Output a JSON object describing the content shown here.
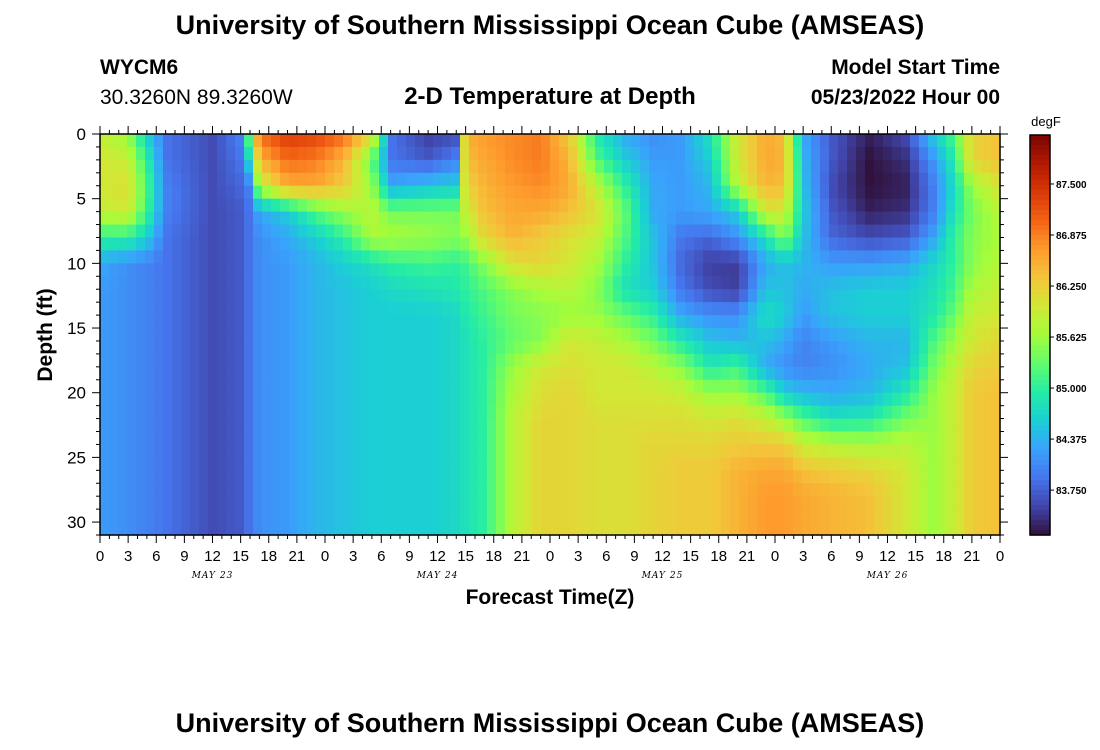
{
  "header": {
    "title": "University of Southern Mississippi Ocean Cube (AMSEAS)",
    "station": "WYCM6",
    "coords": "30.3260N  89.3260W",
    "subtitle": "2-D Temperature at Depth",
    "model_start_label": "Model Start Time",
    "model_start_value": "05/23/2022 Hour 00"
  },
  "footer": {
    "title": "University of Southern Mississippi Ocean Cube (AMSEAS)"
  },
  "colors": {
    "scale": [
      "#30123b",
      "#4145ab",
      "#4675ed",
      "#39a2fc",
      "#1bcfd4",
      "#24eca6",
      "#61fc6c",
      "#a4fc3b",
      "#d1e834",
      "#f3c63a",
      "#fe9b2d",
      "#f36315",
      "#d93806",
      "#b11901",
      "#7a0402"
    ]
  },
  "chart_data": {
    "type": "heatmap",
    "title": "2-D Temperature at Depth",
    "xlabel": "Forecast Time(Z)",
    "ylabel": "Depth (ft)",
    "x_range": [
      0,
      96
    ],
    "x_unit": "hours since 05/23/2022 00Z",
    "x_tick_labels": [
      "0",
      "3",
      "6",
      "9",
      "12",
      "15",
      "18",
      "21",
      "0",
      "3",
      "6",
      "9",
      "12",
      "15",
      "18",
      "21",
      "0",
      "3",
      "6",
      "9",
      "12",
      "15",
      "18",
      "21",
      "0",
      "3",
      "6",
      "9",
      "12",
      "15",
      "18",
      "21",
      "0"
    ],
    "date_labels": [
      {
        "text": "MAY 23",
        "hour": 12
      },
      {
        "text": "MAY 24",
        "hour": 36
      },
      {
        "text": "MAY 25",
        "hour": 60
      },
      {
        "text": "MAY 26",
        "hour": 84
      }
    ],
    "y_range": [
      0,
      31
    ],
    "y_ticks": [
      0,
      5,
      10,
      15,
      20,
      25,
      30
    ],
    "colorbar": {
      "unit": "degF",
      "min": 83.2,
      "max": 88.1,
      "ticks": [
        "87.500",
        "86.875",
        "86.250",
        "85.625",
        "85.000",
        "84.375",
        "83.750"
      ],
      "tick_values": [
        87.5,
        86.875,
        86.25,
        85.625,
        85.0,
        84.375,
        83.75
      ]
    },
    "profile_depths": [
      0,
      2,
      4,
      6,
      8,
      10,
      12,
      14,
      16,
      18,
      20,
      22,
      24,
      26,
      28,
      31
    ],
    "profiles": [
      {
        "hour": 0,
        "temps": [
          85.9,
          86.0,
          86.0,
          85.9,
          85.0,
          84.3,
          84.2,
          84.2,
          84.2,
          84.2,
          84.2,
          84.2,
          84.2,
          84.2,
          84.2,
          84.2
        ]
      },
      {
        "hour": 3,
        "temps": [
          85.6,
          85.9,
          86.1,
          86.0,
          85.0,
          84.1,
          84.1,
          84.1,
          84.1,
          84.1,
          84.1,
          84.1,
          84.1,
          84.1,
          84.1,
          84.1
        ]
      },
      {
        "hour": 5,
        "temps": [
          84.6,
          85.0,
          85.2,
          85.1,
          84.6,
          84.0,
          84.0,
          84.0,
          84.0,
          84.0,
          84.0,
          84.0,
          84.0,
          84.0,
          84.0,
          84.0
        ]
      },
      {
        "hour": 7,
        "temps": [
          83.9,
          83.9,
          84.0,
          84.0,
          83.9,
          83.9,
          83.9,
          83.9,
          83.9,
          83.9,
          83.9,
          83.9,
          83.9,
          83.9,
          83.9,
          83.9
        ]
      },
      {
        "hour": 12,
        "temps": [
          83.6,
          83.6,
          83.6,
          83.6,
          83.6,
          83.6,
          83.6,
          83.6,
          83.6,
          83.6,
          83.6,
          83.6,
          83.6,
          83.6,
          83.6,
          83.6
        ]
      },
      {
        "hour": 15,
        "temps": [
          84.0,
          83.9,
          83.8,
          83.7,
          83.7,
          83.7,
          83.7,
          83.7,
          83.7,
          83.7,
          83.7,
          83.7,
          83.7,
          83.7,
          83.7,
          83.7
        ]
      },
      {
        "hour": 16,
        "temps": [
          85.5,
          84.8,
          84.0,
          83.9,
          83.9,
          83.9,
          83.9,
          83.9,
          83.9,
          83.9,
          83.9,
          83.9,
          83.9,
          83.9,
          83.9,
          83.9
        ]
      },
      {
        "hour": 17,
        "temps": [
          87.0,
          86.5,
          85.8,
          84.3,
          84.1,
          84.1,
          84.1,
          84.1,
          84.1,
          84.1,
          84.1,
          84.1,
          84.1,
          84.1,
          84.1,
          84.1
        ]
      },
      {
        "hour": 20,
        "temps": [
          87.4,
          87.0,
          86.6,
          84.6,
          84.3,
          84.2,
          84.2,
          84.2,
          84.2,
          84.2,
          84.2,
          84.2,
          84.2,
          84.2,
          84.2,
          84.2
        ]
      },
      {
        "hour": 23,
        "temps": [
          87.3,
          86.9,
          86.6,
          85.2,
          84.6,
          84.4,
          84.4,
          84.4,
          84.4,
          84.4,
          84.4,
          84.4,
          84.4,
          84.4,
          84.4,
          84.4
        ]
      },
      {
        "hour": 26,
        "temps": [
          87.0,
          86.5,
          86.3,
          85.6,
          85.0,
          84.6,
          84.5,
          84.5,
          84.5,
          84.5,
          84.5,
          84.5,
          84.5,
          84.5,
          84.5,
          84.5
        ]
      },
      {
        "hour": 29,
        "temps": [
          86.2,
          85.3,
          85.6,
          85.8,
          85.7,
          84.8,
          84.6,
          84.6,
          84.6,
          84.6,
          84.6,
          84.6,
          84.6,
          84.6,
          84.6,
          84.6
        ]
      },
      {
        "hour": 31,
        "temps": [
          83.9,
          83.9,
          84.3,
          85.4,
          85.7,
          85.0,
          84.7,
          84.6,
          84.6,
          84.6,
          84.6,
          84.6,
          84.6,
          84.6,
          84.6,
          84.6
        ]
      },
      {
        "hour": 35,
        "temps": [
          83.5,
          83.7,
          84.5,
          85.4,
          85.6,
          85.1,
          84.8,
          84.6,
          84.6,
          84.6,
          84.6,
          84.6,
          84.6,
          84.6,
          84.6,
          84.6
        ]
      },
      {
        "hour": 38,
        "temps": [
          83.6,
          84.0,
          84.6,
          85.4,
          85.5,
          85.0,
          84.9,
          84.7,
          84.7,
          84.7,
          84.7,
          84.7,
          84.7,
          84.7,
          84.7,
          84.7
        ]
      },
      {
        "hour": 39,
        "temps": [
          86.5,
          86.4,
          86.2,
          85.9,
          85.6,
          85.1,
          85.0,
          84.9,
          84.8,
          84.8,
          84.8,
          84.8,
          84.8,
          84.8,
          84.8,
          84.8
        ]
      },
      {
        "hour": 41,
        "temps": [
          86.7,
          86.6,
          86.5,
          86.4,
          86.2,
          85.5,
          85.2,
          85.1,
          85.0,
          85.0,
          85.0,
          85.0,
          85.0,
          85.0,
          85.0,
          85.0
        ]
      },
      {
        "hour": 44,
        "temps": [
          86.8,
          86.8,
          86.7,
          86.6,
          86.5,
          86.1,
          85.5,
          85.4,
          85.3,
          85.6,
          85.7,
          85.8,
          85.8,
          85.8,
          85.8,
          85.8
        ]
      },
      {
        "hour": 47,
        "temps": [
          86.9,
          86.9,
          86.8,
          86.6,
          86.3,
          86.2,
          85.7,
          85.5,
          85.5,
          86.0,
          86.1,
          86.2,
          86.2,
          86.2,
          86.2,
          86.2
        ]
      },
      {
        "hour": 50,
        "temps": [
          86.3,
          86.5,
          86.6,
          86.4,
          86.1,
          86.0,
          85.8,
          85.6,
          86.0,
          86.1,
          86.2,
          86.2,
          86.2,
          86.2,
          86.2,
          86.2
        ]
      },
      {
        "hour": 53,
        "temps": [
          84.9,
          85.2,
          85.8,
          86.1,
          85.9,
          85.7,
          85.5,
          85.6,
          85.9,
          86.0,
          86.0,
          86.1,
          86.1,
          86.1,
          86.1,
          86.1
        ]
      },
      {
        "hour": 56,
        "temps": [
          84.3,
          84.6,
          85.0,
          85.3,
          85.2,
          85.0,
          84.8,
          85.3,
          85.7,
          86.0,
          86.0,
          86.1,
          86.1,
          86.1,
          86.1,
          86.1
        ]
      },
      {
        "hour": 59,
        "temps": [
          84.1,
          84.2,
          84.3,
          84.3,
          84.5,
          84.5,
          84.6,
          85.0,
          85.4,
          85.8,
          86.0,
          86.1,
          86.2,
          86.2,
          86.2,
          86.2
        ]
      },
      {
        "hour": 62,
        "temps": [
          84.2,
          84.2,
          84.2,
          84.2,
          83.9,
          83.8,
          83.9,
          84.3,
          84.9,
          85.5,
          85.9,
          86.1,
          86.2,
          86.3,
          86.3,
          86.3
        ]
      },
      {
        "hour": 65,
        "temps": [
          84.8,
          84.6,
          84.4,
          84.3,
          83.8,
          83.5,
          83.6,
          84.1,
          84.5,
          84.9,
          85.6,
          86.0,
          86.2,
          86.3,
          86.3,
          86.3
        ]
      },
      {
        "hour": 68,
        "temps": [
          86.0,
          86.0,
          85.8,
          84.6,
          84.1,
          83.5,
          83.5,
          84.1,
          84.4,
          85.1,
          85.6,
          86.1,
          86.3,
          86.5,
          86.5,
          86.5
        ]
      },
      {
        "hour": 71,
        "temps": [
          86.6,
          86.6,
          86.5,
          86.0,
          84.8,
          84.3,
          84.5,
          84.8,
          84.5,
          84.3,
          85.2,
          85.9,
          86.3,
          86.6,
          86.7,
          86.7
        ]
      },
      {
        "hour": 73,
        "temps": [
          86.4,
          86.5,
          86.4,
          86.0,
          85.5,
          84.5,
          84.5,
          84.6,
          84.3,
          84.1,
          84.6,
          85.6,
          86.3,
          86.6,
          86.7,
          86.7
        ]
      },
      {
        "hour": 75,
        "temps": [
          84.3,
          84.4,
          84.5,
          84.6,
          84.5,
          84.4,
          84.3,
          84.2,
          84.0,
          84.0,
          84.4,
          85.2,
          85.9,
          86.4,
          86.6,
          86.6
        ]
      },
      {
        "hour": 78,
        "temps": [
          83.7,
          83.7,
          83.6,
          83.7,
          83.8,
          84.2,
          84.5,
          84.5,
          84.2,
          84.1,
          84.3,
          84.8,
          85.8,
          86.3,
          86.5,
          86.5
        ]
      },
      {
        "hour": 82,
        "temps": [
          83.3,
          83.2,
          83.2,
          83.3,
          83.6,
          84.2,
          84.6,
          84.6,
          84.4,
          84.3,
          84.4,
          84.9,
          85.7,
          86.2,
          86.4,
          86.4
        ]
      },
      {
        "hour": 86,
        "temps": [
          83.6,
          83.4,
          83.3,
          83.4,
          83.7,
          84.3,
          84.6,
          84.6,
          84.4,
          84.5,
          84.9,
          85.4,
          85.8,
          86.0,
          86.0,
          86.0
        ]
      },
      {
        "hour": 89,
        "temps": [
          84.6,
          84.2,
          84.0,
          84.0,
          84.3,
          84.7,
          84.8,
          84.9,
          85.2,
          85.4,
          85.6,
          85.6,
          85.6,
          85.6,
          85.6,
          85.6
        ]
      },
      {
        "hour": 91,
        "temps": [
          85.2,
          84.9,
          84.7,
          84.8,
          85.0,
          85.0,
          85.1,
          85.3,
          85.6,
          85.8,
          85.9,
          85.9,
          85.9,
          85.9,
          85.9,
          85.9
        ]
      },
      {
        "hour": 93,
        "temps": [
          86.2,
          86.2,
          85.6,
          85.4,
          85.5,
          85.5,
          85.7,
          85.9,
          86.0,
          86.2,
          86.3,
          86.3,
          86.3,
          86.3,
          86.3,
          86.3
        ]
      },
      {
        "hour": 96,
        "temps": [
          86.4,
          86.4,
          86.1,
          85.8,
          85.7,
          85.8,
          85.9,
          86.0,
          86.2,
          86.3,
          86.4,
          86.4,
          86.4,
          86.4,
          86.4,
          86.4
        ]
      }
    ]
  }
}
